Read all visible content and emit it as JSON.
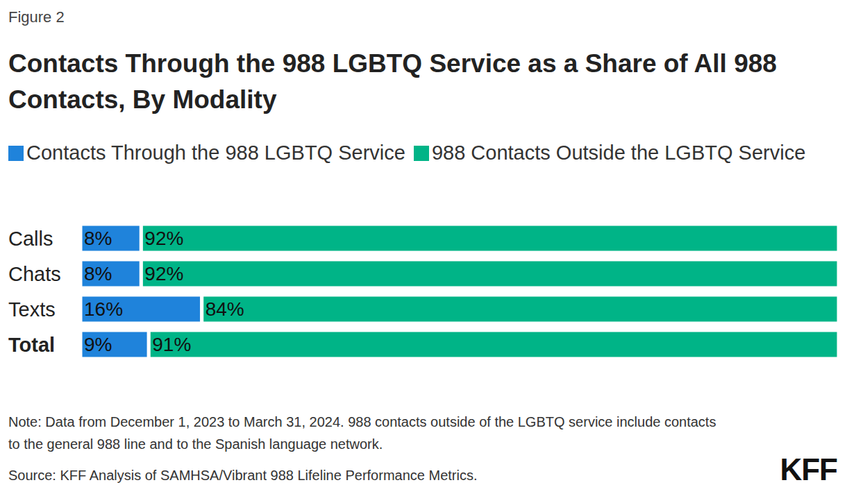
{
  "chart_data": {
    "type": "bar",
    "caption": "Figure 2",
    "title": "Contacts Through the 988 LGBTQ Service as a Share of All 988 Contacts, By Modality",
    "orientation": "horizontal",
    "stacked": true,
    "data_labels": true,
    "tick_labels": "y",
    "legend": "top",
    "categories": [
      "Calls",
      "Chats",
      "Texts",
      "Total"
    ],
    "xlim": [
      0,
      100
    ],
    "series": [
      {
        "name": "Contacts Through the 988 LGBTQ Service",
        "color": "#1f83db",
        "values": [
          8,
          8,
          16,
          9
        ],
        "value_labels": [
          "8%",
          "8%",
          "16%",
          "9%"
        ]
      },
      {
        "name": "988 Contacts Outside the LGBTQ Service",
        "color": "#00b487",
        "values": [
          92,
          92,
          84,
          91
        ],
        "value_labels": [
          "92%",
          "92%",
          "84%",
          "91%"
        ]
      }
    ],
    "notes": [
      "Note: Data from December 1, 2023 to March 31, 2024. 988 contacts outside of the LGBTQ service include contacts to the general 988 line and to the Spanish language network.",
      "Source: KFF Analysis of SAMHSA/Vibrant 988 Lifeline Performance Metrics."
    ],
    "logo": "KFF"
  }
}
